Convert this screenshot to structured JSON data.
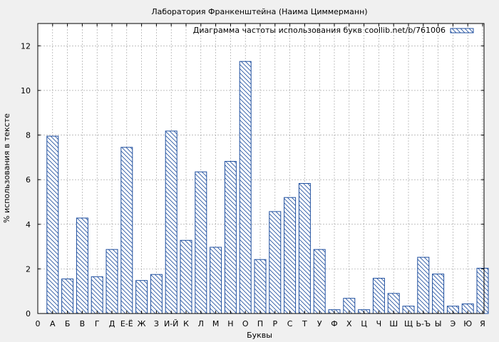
{
  "chart_data": {
    "type": "bar",
    "title": "Лаборатория Франкенштейна (Наима Циммерманн)",
    "xlabel": "Буквы",
    "ylabel": "% использования в тексте",
    "legend": {
      "label": "Диаграмма частоты использования букв coollib.net/b/761006",
      "placement": "top-right"
    },
    "grid": true,
    "ylim": [
      0,
      13
    ],
    "yticks": [
      0,
      2,
      4,
      6,
      8,
      10,
      12
    ],
    "x_origin_label": "0",
    "categories": [
      "А",
      "Б",
      "В",
      "Г",
      "Д",
      "Е-Ё",
      "Ж",
      "З",
      "И-Й",
      "К",
      "Л",
      "М",
      "Н",
      "О",
      "П",
      "Р",
      "С",
      "Т",
      "У",
      "Ф",
      "Х",
      "Ц",
      "Ч",
      "Ш",
      "Щ",
      "Ь-Ъ",
      "Ы",
      "Э",
      "Ю",
      "Я"
    ],
    "values": [
      7.95,
      1.55,
      4.28,
      1.65,
      2.87,
      7.45,
      1.48,
      1.75,
      8.18,
      3.28,
      6.35,
      2.97,
      6.82,
      11.3,
      2.42,
      4.57,
      5.2,
      5.83,
      2.87,
      0.17,
      0.68,
      0.17,
      1.58,
      0.9,
      0.33,
      2.52,
      1.77,
      0.33,
      0.43,
      2.03
    ],
    "colors": {
      "bar_stroke": "#1f4f9f",
      "hatch": "#1f4f9f",
      "bar_fill": "#ffffff",
      "grid": "#999999",
      "plot_bg": "#ffffff",
      "page_bg": "#f0f0f0"
    }
  }
}
